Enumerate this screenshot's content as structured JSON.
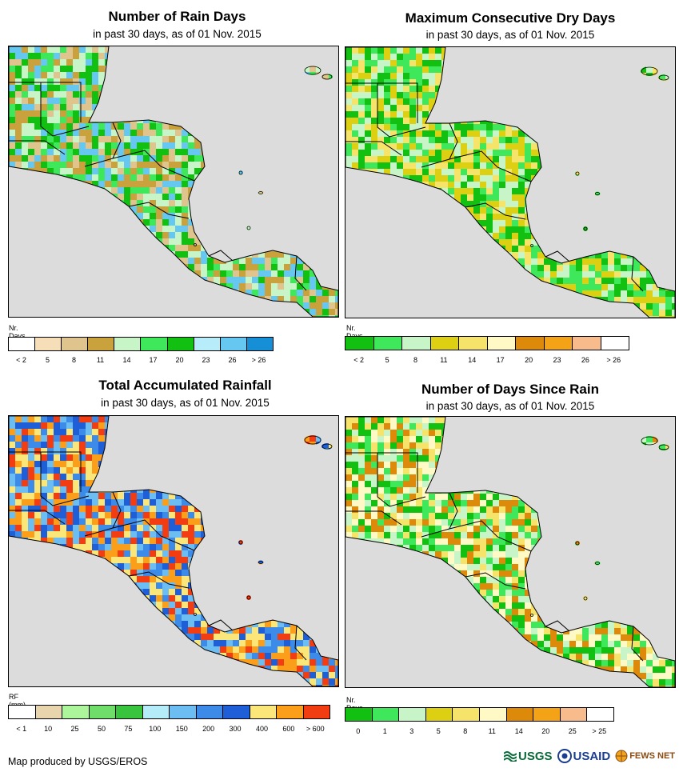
{
  "panels": [
    {
      "id": "rain_days",
      "title": "Number of Rain Days",
      "subtitle": "in past 30 days, as of 01 Nov. 2015",
      "unit_label": "Nr. Days",
      "legend_colors": [
        "#ffffff",
        "#f5deb8",
        "#e0c48e",
        "#c9a13d",
        "#c8f5c8",
        "#3ee85a",
        "#11c011",
        "#b7ecfa",
        "#66c7f0",
        "#168fd6"
      ],
      "legend_ticks": [
        "< 2",
        "5",
        "8",
        "11",
        "14",
        "17",
        "20",
        "23",
        "26",
        "> 26"
      ],
      "map_colors": [
        "#c9a13d",
        "#e0c48e",
        "#c8f5c8",
        "#3ee85a",
        "#11c011",
        "#66c7f0"
      ]
    },
    {
      "id": "dry_days",
      "title": "Maximum Consecutive Dry Days",
      "subtitle": "in past 30 days, as of 01 Nov. 2015",
      "unit_label": "Nr. Days",
      "legend_colors": [
        "#11c011",
        "#3ee85a",
        "#c8f5c8",
        "#ddd012",
        "#f6e46a",
        "#fff9c6",
        "#dd8a0b",
        "#f5a316",
        "#f7bb8c",
        "#ffffff"
      ],
      "legend_ticks": [
        "< 2",
        "5",
        "8",
        "11",
        "14",
        "17",
        "20",
        "23",
        "26",
        "> 26"
      ],
      "map_colors": [
        "#11c011",
        "#3ee85a",
        "#c8f5c8",
        "#ddd012",
        "#f6e46a"
      ]
    },
    {
      "id": "rainfall",
      "title": "Total Accumulated Rainfall",
      "subtitle": "in past 30 days, as of 01 Nov. 2015",
      "unit_label": "RF (mm)",
      "legend_colors": [
        "#ffffff",
        "#e8d4ad",
        "#adf59b",
        "#6fdd6a",
        "#38c43c",
        "#b4ecfa",
        "#6cbdf2",
        "#3c8be8",
        "#1e5fd8",
        "#fbe67a",
        "#fb9e1a",
        "#f23c12"
      ],
      "legend_ticks": [
        "< 1",
        "10",
        "25",
        "50",
        "75",
        "100",
        "150",
        "200",
        "300",
        "400",
        "600",
        "> 600"
      ],
      "map_colors": [
        "#3c8be8",
        "#1e5fd8",
        "#6cbdf2",
        "#fbe67a",
        "#fb9e1a",
        "#f23c12"
      ]
    },
    {
      "id": "days_since_rain",
      "title": "Number of Days Since Rain",
      "subtitle": "in past 30 days, as of 01 Nov. 2015",
      "unit_label": "Nr. Days",
      "legend_colors": [
        "#11c011",
        "#3ee85a",
        "#c8f5c8",
        "#ddd012",
        "#f6e46a",
        "#fff9c6",
        "#dd8a0b",
        "#f5a316",
        "#f7bb8c",
        "#ffffff"
      ],
      "legend_ticks": [
        "0",
        "1",
        "3",
        "5",
        "8",
        "11",
        "14",
        "20",
        "25",
        "> 25"
      ],
      "map_colors": [
        "#11c011",
        "#3ee85a",
        "#c8f5c8",
        "#f6e46a",
        "#fff9c6",
        "#dd8a0b"
      ]
    }
  ],
  "footer": {
    "credit": "Map produced by USGS/EROS"
  },
  "logos": {
    "usgs": "USGS",
    "usaid": "USAID",
    "fewsnet": "FEWS NET"
  },
  "colors": {
    "ocean": "#dcdcdc",
    "border": "#000000"
  }
}
